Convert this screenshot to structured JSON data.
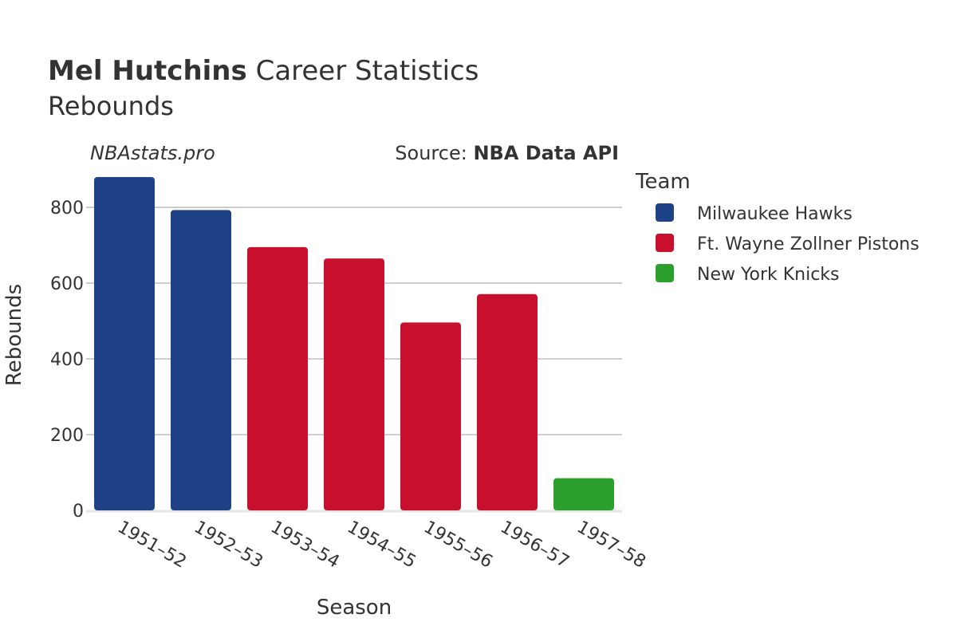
{
  "header": {
    "title_bold": "Mel Hutchins",
    "title_rest": " Career Statistics",
    "subtitle": "Rebounds",
    "site": "NBAstats.pro",
    "source_prefix": "Source: ",
    "source_name": "NBA Data API"
  },
  "legend": {
    "title": "Team"
  },
  "chart_data": {
    "type": "bar",
    "xlabel": "Season",
    "ylabel": "Rebounds",
    "ylim": [
      0,
      900
    ],
    "yticks": [
      0,
      200,
      400,
      600,
      800
    ],
    "grid": true,
    "legend_position": "right",
    "categories": [
      "1951–52",
      "1952–53",
      "1953–54",
      "1954–55",
      "1955–56",
      "1956–57",
      "1957–58"
    ],
    "series": [
      {
        "name": "Milwaukee Hawks",
        "color": "#1f4287",
        "values": [
          880,
          793,
          null,
          null,
          null,
          null,
          null
        ]
      },
      {
        "name": "Ft. Wayne Zollner Pistons",
        "color": "#c8102e",
        "values": [
          null,
          null,
          695,
          665,
          496,
          571,
          null
        ]
      },
      {
        "name": "New York Knicks",
        "color": "#2ca02c",
        "values": [
          null,
          null,
          null,
          null,
          null,
          null,
          85
        ]
      }
    ]
  }
}
